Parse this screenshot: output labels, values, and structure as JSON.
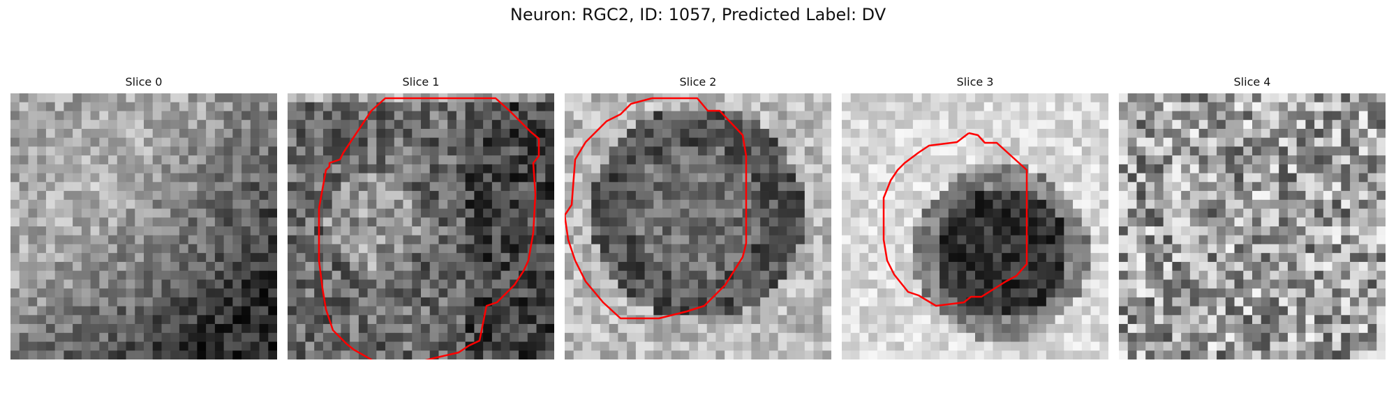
{
  "figure": {
    "title": "Neuron: RGC2, ID: 1057, Predicted Label: DV",
    "contour_color": "#ff0000"
  },
  "slices": [
    {
      "title": "Slice 0",
      "contour": false,
      "image": "grayscale-patch"
    },
    {
      "title": "Slice 1",
      "contour": true,
      "image": "grayscale-patch"
    },
    {
      "title": "Slice 2",
      "contour": true,
      "image": "grayscale-patch"
    },
    {
      "title": "Slice 3",
      "contour": true,
      "image": "grayscale-patch"
    },
    {
      "title": "Slice 4",
      "contour": false,
      "image": "grayscale-patch"
    }
  ]
}
